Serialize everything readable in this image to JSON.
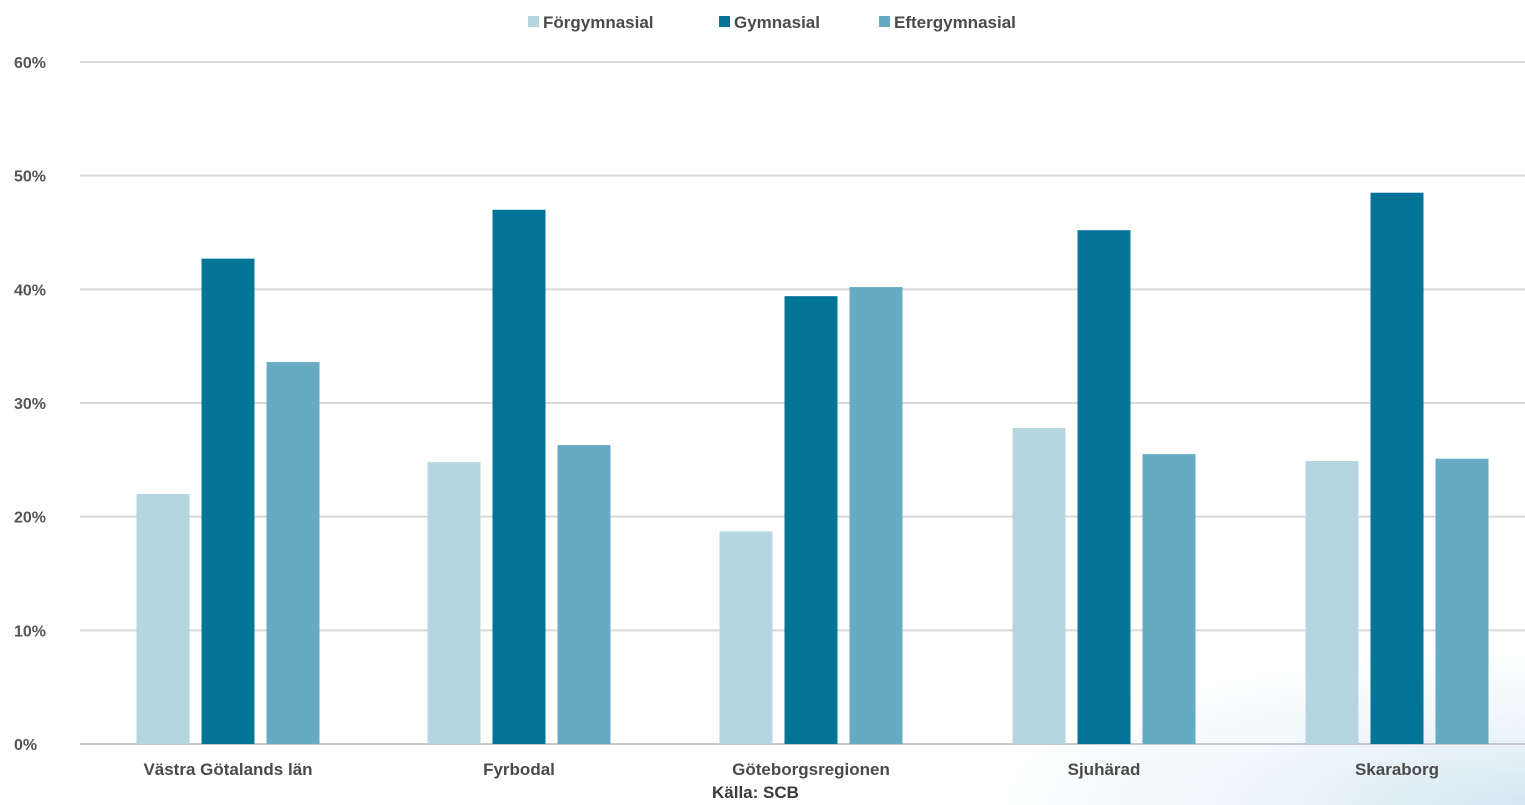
{
  "chart_data": {
    "type": "bar",
    "categories": [
      "Västra Götalands län",
      "Fyrbodal",
      "Göteborgsregionen",
      "Sjuhärad",
      "Skaraborg"
    ],
    "series": [
      {
        "name": "Förgymnasial",
        "values": [
          22,
          24.8,
          18.7,
          27.8,
          24.9
        ]
      },
      {
        "name": "Gymnasial",
        "values": [
          42.7,
          47.0,
          39.4,
          45.2,
          48.5
        ]
      },
      {
        "name": "Eftergymnasial",
        "values": [
          33.6,
          26.3,
          40.2,
          25.5,
          25.1
        ]
      }
    ],
    "colors": [
      "#b5d6e0",
      "#027597",
      "#67abc2"
    ],
    "ylim": [
      0,
      60
    ],
    "yticks": [
      0,
      10,
      20,
      30,
      40,
      50,
      60
    ],
    "ytick_labels": [
      "0%",
      "10%",
      "20%",
      "30%",
      "40%",
      "50%",
      "60%"
    ],
    "grid": true,
    "legend_position": "top-center",
    "xlabel": "",
    "ylabel": "",
    "title": ""
  },
  "source": "Källa:  SCB"
}
